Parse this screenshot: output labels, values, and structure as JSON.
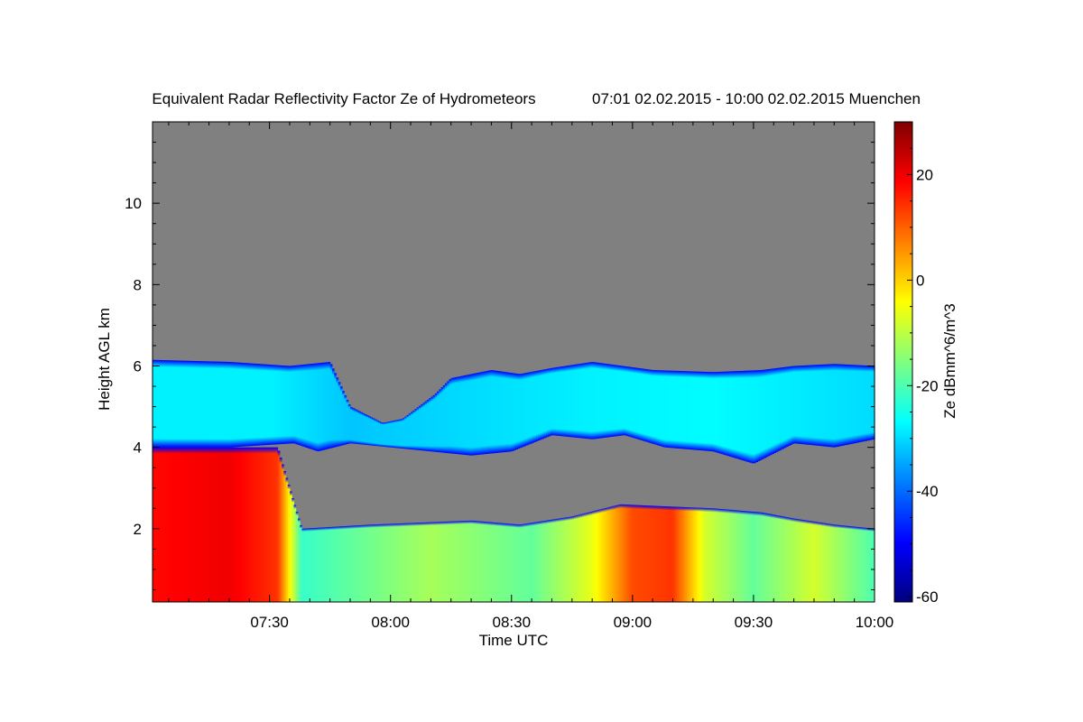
{
  "chart_data": {
    "type": "heatmap",
    "title": "Equivalent Radar Reflectivity Factor Ze of Hydrometeors",
    "subtitle": "07:01 02.02.2015 - 10:00 02.02.2015 Muenchen",
    "xlabel": "Time UTC",
    "ylabel": "Height AGL km",
    "colorbar_label": "Ze dBmm^6/m^3",
    "x_range_minutes_utc": [
      421,
      600
    ],
    "y_range_km": [
      0.2,
      12.0
    ],
    "color_range": [
      -61,
      30
    ],
    "x_ticks": [
      {
        "label": "07:30",
        "value": 450
      },
      {
        "label": "08:00",
        "value": 480
      },
      {
        "label": "08:30",
        "value": 510
      },
      {
        "label": "09:00",
        "value": 540
      },
      {
        "label": "09:30",
        "value": 570
      },
      {
        "label": "10:00",
        "value": 600
      }
    ],
    "y_ticks": [
      {
        "label": "2",
        "value": 2
      },
      {
        "label": "4",
        "value": 4
      },
      {
        "label": "6",
        "value": 6
      },
      {
        "label": "8",
        "value": 8
      },
      {
        "label": "10",
        "value": 10
      }
    ],
    "colorbar_ticks": [
      {
        "label": "20",
        "value": 20
      },
      {
        "label": "0",
        "value": 0
      },
      {
        "label": "-20",
        "value": -20
      },
      {
        "label": "-40",
        "value": -40
      },
      {
        "label": "-60",
        "value": -60
      }
    ],
    "colors": {
      "no_signal": "#808080",
      "colormap": [
        "#00007f",
        "#0000ff",
        "#007fff",
        "#00ffff",
        "#7fff7f",
        "#ffff00",
        "#ff7f00",
        "#ff0000",
        "#7f0000"
      ]
    },
    "layers": [
      {
        "name": "upper cloud",
        "top_km": [
          [
            421,
            6.15
          ],
          [
            440,
            6.1
          ],
          [
            455,
            6.0
          ],
          [
            465,
            6.1
          ],
          [
            470,
            5.0
          ],
          [
            478,
            4.6
          ],
          [
            483,
            4.7
          ],
          [
            491,
            5.3
          ],
          [
            495,
            5.7
          ],
          [
            505,
            5.9
          ],
          [
            512,
            5.8
          ],
          [
            520,
            5.95
          ],
          [
            530,
            6.1
          ],
          [
            545,
            5.9
          ],
          [
            560,
            5.85
          ],
          [
            572,
            5.9
          ],
          [
            580,
            6.0
          ],
          [
            590,
            6.05
          ],
          [
            600,
            6.0
          ]
        ],
        "bottom_km": [
          [
            421,
            4.0
          ],
          [
            440,
            4.0
          ],
          [
            456,
            4.1
          ],
          [
            462,
            3.9
          ],
          [
            470,
            4.1
          ],
          [
            480,
            4.0
          ],
          [
            490,
            3.9
          ],
          [
            500,
            3.8
          ],
          [
            510,
            3.9
          ],
          [
            520,
            4.3
          ],
          [
            530,
            4.2
          ],
          [
            538,
            4.3
          ],
          [
            548,
            4.0
          ],
          [
            560,
            3.9
          ],
          [
            570,
            3.6
          ],
          [
            580,
            4.1
          ],
          [
            590,
            4.0
          ],
          [
            600,
            4.2
          ]
        ],
        "ze_dbz": [
          [
            421,
            -28
          ],
          [
            450,
            -28
          ],
          [
            470,
            -32
          ],
          [
            500,
            -30
          ],
          [
            530,
            -28
          ],
          [
            560,
            -27
          ],
          [
            600,
            -30
          ]
        ]
      },
      {
        "name": "lower precipitation",
        "top_km": [
          [
            421,
            4.0
          ],
          [
            452,
            4.0
          ],
          [
            458,
            2.0
          ],
          [
            475,
            2.1
          ],
          [
            500,
            2.2
          ],
          [
            512,
            2.1
          ],
          [
            525,
            2.3
          ],
          [
            537,
            2.6
          ],
          [
            548,
            2.55
          ],
          [
            560,
            2.5
          ],
          [
            572,
            2.4
          ],
          [
            580,
            2.25
          ],
          [
            590,
            2.1
          ],
          [
            600,
            2.0
          ]
        ],
        "bottom_km": [
          [
            421,
            0.2
          ],
          [
            600,
            0.2
          ]
        ],
        "ze_dbz": [
          [
            421,
            18
          ],
          [
            440,
            20
          ],
          [
            452,
            14
          ],
          [
            458,
            -22
          ],
          [
            490,
            -12
          ],
          [
            515,
            -18
          ],
          [
            530,
            -6
          ],
          [
            540,
            12
          ],
          [
            550,
            14
          ],
          [
            558,
            -8
          ],
          [
            570,
            -18
          ],
          [
            585,
            -8
          ],
          [
            600,
            -20
          ]
        ]
      }
    ]
  }
}
